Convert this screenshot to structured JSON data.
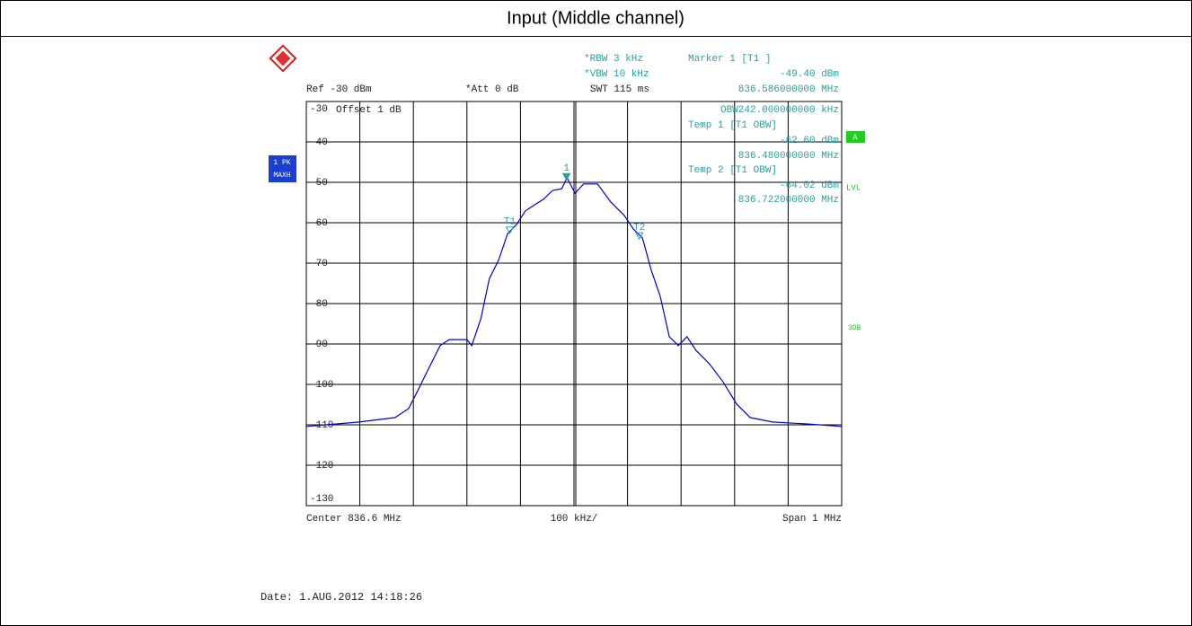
{
  "chart_data": {
    "type": "line",
    "title": "Input (Middle channel)",
    "annotations": {
      "rbw": "*RBW 3 kHz",
      "vbw": "*VBW 10 kHz",
      "swt": "SWT 115 ms",
      "marker_title": "Marker 1 [T1 ]",
      "marker_level": "-49.40 dBm",
      "marker_freq": "836.586000000 MHz",
      "ref": "Ref -30 dBm",
      "att": "*Att  0 dB",
      "offset": "Offset  1 dB",
      "obw": "OBW242.000000000 kHz",
      "temp1_title": "Temp 1 [T1 OBW]",
      "temp1_level": "-62.60 dBm",
      "temp1_freq": "836.480000000 MHz",
      "temp2_title": "Temp 2 [T1 OBW]",
      "temp2_level": "-64.02 dBm",
      "temp2_freq": "836.722000000 MHz",
      "trace_mode_1": "1 PK",
      "trace_mode_2": "MAXH",
      "flag_a": "A",
      "flag_lvl": "LVL",
      "flag_3db": "3DB",
      "center": "Center 836.6 MHz",
      "per_div": "100 kHz/",
      "span": "Span 1 MHz",
      "date": "Date: 1.AUG.2012  14:18:26"
    },
    "x": [
      836.1,
      836.199,
      836.266,
      836.291,
      836.308,
      836.325,
      836.35,
      836.367,
      836.4,
      836.409,
      836.426,
      836.442,
      836.459,
      836.476,
      836.493,
      836.509,
      836.526,
      836.543,
      836.56,
      836.577,
      836.587,
      836.602,
      836.618,
      836.644,
      836.669,
      836.694,
      836.711,
      836.728,
      836.744,
      836.761,
      836.778,
      836.795,
      836.811,
      836.828,
      836.853,
      836.878,
      836.904,
      836.929,
      836.971,
      837.038,
      837.1
    ],
    "series": [
      {
        "color": "#0000cc",
        "values": [
          -110.4,
          -109.3,
          -108.2,
          -106,
          -101.6,
          -97,
          -90.4,
          -88.9,
          -88.9,
          -90.4,
          -83.8,
          -73.8,
          -69.3,
          -62.7,
          -60.4,
          -57.1,
          -55.6,
          -54.2,
          -52,
          -51.6,
          -48.9,
          -52.7,
          -50.4,
          -50.4,
          -54.9,
          -58.2,
          -61.6,
          -63.8,
          -71.6,
          -78.2,
          -88.2,
          -90.4,
          -88.2,
          -91.6,
          -94.9,
          -99.3,
          -104.9,
          -108.2,
          -109.3,
          -109.8,
          -110.4
        ]
      }
    ],
    "markers": [
      {
        "label": "1",
        "x": 836.586,
        "y": -49.4
      },
      {
        "label": "T1",
        "x": 836.48,
        "y": -62.6
      },
      {
        "label": "T2",
        "x": 836.722,
        "y": -64.02
      }
    ],
    "marker_color": "#2a9d9d",
    "xlim": [
      836.1,
      837.1
    ],
    "ylim": [
      -130,
      -30
    ],
    "yticks": [
      -30,
      -40,
      -50,
      -60,
      -70,
      -80,
      -90,
      -100,
      -110,
      -120,
      -130
    ],
    "grid": true
  }
}
